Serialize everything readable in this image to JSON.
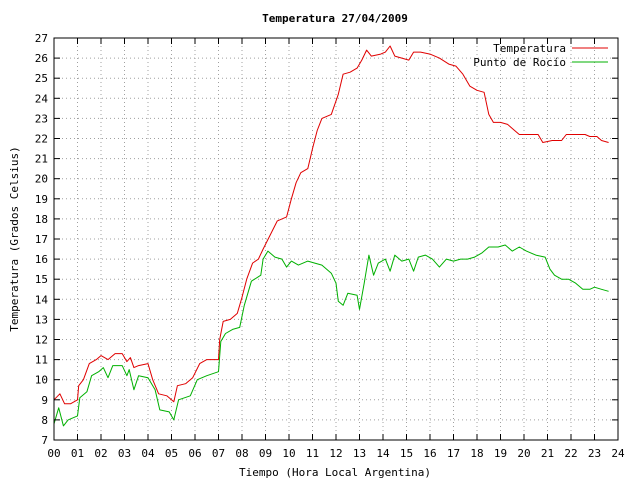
{
  "chart_data": {
    "type": "line",
    "title": "Temperatura 27/04/2009",
    "xlabel": "Tiempo (Hora Local Argentina)",
    "ylabel": "Temperatura (Grados Celsius)",
    "xlim": [
      0,
      24
    ],
    "ylim": [
      7,
      27
    ],
    "x_ticks": [
      "00",
      "01",
      "02",
      "03",
      "04",
      "05",
      "06",
      "07",
      "08",
      "09",
      "10",
      "11",
      "12",
      "13",
      "14",
      "15",
      "16",
      "17",
      "18",
      "19",
      "20",
      "21",
      "22",
      "23",
      "24"
    ],
    "y_ticks": [
      7,
      8,
      9,
      10,
      11,
      12,
      13,
      14,
      15,
      16,
      17,
      18,
      19,
      20,
      21,
      22,
      23,
      24,
      25,
      26,
      27
    ],
    "grid": true,
    "legend_position": "top-right",
    "series": [
      {
        "name": "Temperatura",
        "color": "#e00000",
        "points": [
          [
            0.0,
            9.0
          ],
          [
            0.25,
            9.3
          ],
          [
            0.45,
            8.8
          ],
          [
            0.7,
            8.8
          ],
          [
            1.0,
            9.0
          ],
          [
            1.05,
            9.7
          ],
          [
            1.25,
            10.0
          ],
          [
            1.5,
            10.8
          ],
          [
            1.8,
            11.0
          ],
          [
            2.0,
            11.2
          ],
          [
            2.3,
            11.0
          ],
          [
            2.6,
            11.3
          ],
          [
            2.9,
            11.3
          ],
          [
            3.1,
            10.9
          ],
          [
            3.25,
            11.1
          ],
          [
            3.4,
            10.6
          ],
          [
            3.6,
            10.7
          ],
          [
            4.0,
            10.8
          ],
          [
            4.2,
            10.0
          ],
          [
            4.45,
            9.3
          ],
          [
            4.8,
            9.2
          ],
          [
            5.1,
            8.9
          ],
          [
            5.25,
            9.7
          ],
          [
            5.6,
            9.8
          ],
          [
            5.9,
            10.1
          ],
          [
            6.2,
            10.8
          ],
          [
            6.5,
            11.0
          ],
          [
            7.0,
            11.0
          ],
          [
            7.05,
            12.0
          ],
          [
            7.2,
            12.9
          ],
          [
            7.5,
            13.0
          ],
          [
            7.8,
            13.3
          ],
          [
            8.0,
            14.1
          ],
          [
            8.2,
            15.0
          ],
          [
            8.45,
            15.8
          ],
          [
            8.7,
            16.0
          ],
          [
            8.9,
            16.5
          ],
          [
            9.2,
            17.2
          ],
          [
            9.5,
            17.9
          ],
          [
            9.9,
            18.1
          ],
          [
            10.1,
            19.0
          ],
          [
            10.3,
            19.8
          ],
          [
            10.5,
            20.3
          ],
          [
            10.8,
            20.5
          ],
          [
            11.0,
            21.5
          ],
          [
            11.2,
            22.4
          ],
          [
            11.4,
            23.0
          ],
          [
            11.8,
            23.2
          ],
          [
            12.1,
            24.2
          ],
          [
            12.3,
            25.2
          ],
          [
            12.6,
            25.3
          ],
          [
            12.9,
            25.5
          ],
          [
            13.1,
            25.9
          ],
          [
            13.3,
            26.4
          ],
          [
            13.5,
            26.1
          ],
          [
            13.9,
            26.2
          ],
          [
            14.1,
            26.3
          ],
          [
            14.3,
            26.6
          ],
          [
            14.5,
            26.1
          ],
          [
            14.8,
            26.0
          ],
          [
            15.1,
            25.9
          ],
          [
            15.3,
            26.3
          ],
          [
            15.6,
            26.3
          ],
          [
            16.0,
            26.2
          ],
          [
            16.4,
            26.0
          ],
          [
            16.8,
            25.7
          ],
          [
            17.1,
            25.6
          ],
          [
            17.4,
            25.2
          ],
          [
            17.7,
            24.6
          ],
          [
            18.0,
            24.4
          ],
          [
            18.3,
            24.3
          ],
          [
            18.5,
            23.2
          ],
          [
            18.7,
            22.8
          ],
          [
            19.0,
            22.8
          ],
          [
            19.3,
            22.7
          ],
          [
            19.6,
            22.4
          ],
          [
            19.8,
            22.2
          ],
          [
            20.2,
            22.2
          ],
          [
            20.6,
            22.2
          ],
          [
            20.8,
            21.8
          ],
          [
            21.2,
            21.9
          ],
          [
            21.6,
            21.9
          ],
          [
            21.8,
            22.2
          ],
          [
            22.2,
            22.2
          ],
          [
            22.6,
            22.2
          ],
          [
            22.8,
            22.1
          ],
          [
            23.1,
            22.1
          ],
          [
            23.3,
            21.9
          ],
          [
            23.6,
            21.8
          ]
        ]
      },
      {
        "name": "Punto de Rocío",
        "color": "#00b000",
        "points": [
          [
            0.0,
            7.8
          ],
          [
            0.2,
            8.6
          ],
          [
            0.4,
            7.7
          ],
          [
            0.6,
            8.0
          ],
          [
            1.0,
            8.2
          ],
          [
            1.1,
            9.1
          ],
          [
            1.4,
            9.4
          ],
          [
            1.6,
            10.2
          ],
          [
            1.9,
            10.4
          ],
          [
            2.1,
            10.6
          ],
          [
            2.3,
            10.1
          ],
          [
            2.5,
            10.7
          ],
          [
            2.9,
            10.7
          ],
          [
            3.1,
            10.2
          ],
          [
            3.2,
            10.5
          ],
          [
            3.4,
            9.5
          ],
          [
            3.6,
            10.2
          ],
          [
            4.0,
            10.1
          ],
          [
            4.3,
            9.5
          ],
          [
            4.5,
            8.5
          ],
          [
            4.9,
            8.4
          ],
          [
            5.1,
            8.0
          ],
          [
            5.3,
            9.0
          ],
          [
            5.8,
            9.2
          ],
          [
            6.1,
            10.0
          ],
          [
            6.5,
            10.2
          ],
          [
            7.0,
            10.4
          ],
          [
            7.1,
            11.9
          ],
          [
            7.3,
            12.3
          ],
          [
            7.6,
            12.5
          ],
          [
            7.9,
            12.6
          ],
          [
            8.1,
            13.7
          ],
          [
            8.4,
            14.9
          ],
          [
            8.8,
            15.2
          ],
          [
            8.9,
            16.0
          ],
          [
            9.1,
            16.4
          ],
          [
            9.4,
            16.1
          ],
          [
            9.7,
            16.0
          ],
          [
            9.9,
            15.6
          ],
          [
            10.1,
            15.9
          ],
          [
            10.4,
            15.7
          ],
          [
            10.8,
            15.9
          ],
          [
            11.1,
            15.8
          ],
          [
            11.4,
            15.7
          ],
          [
            11.8,
            15.3
          ],
          [
            12.0,
            14.8
          ],
          [
            12.1,
            13.9
          ],
          [
            12.3,
            13.7
          ],
          [
            12.5,
            14.3
          ],
          [
            12.9,
            14.2
          ],
          [
            13.0,
            13.5
          ],
          [
            13.2,
            14.8
          ],
          [
            13.4,
            16.2
          ],
          [
            13.6,
            15.2
          ],
          [
            13.8,
            15.8
          ],
          [
            14.1,
            16.0
          ],
          [
            14.3,
            15.4
          ],
          [
            14.5,
            16.2
          ],
          [
            14.8,
            15.9
          ],
          [
            15.1,
            16.0
          ],
          [
            15.3,
            15.4
          ],
          [
            15.5,
            16.1
          ],
          [
            15.8,
            16.2
          ],
          [
            16.1,
            16.0
          ],
          [
            16.4,
            15.6
          ],
          [
            16.7,
            16.0
          ],
          [
            17.0,
            15.9
          ],
          [
            17.3,
            16.0
          ],
          [
            17.6,
            16.0
          ],
          [
            17.9,
            16.1
          ],
          [
            18.2,
            16.3
          ],
          [
            18.5,
            16.6
          ],
          [
            18.9,
            16.6
          ],
          [
            19.2,
            16.7
          ],
          [
            19.5,
            16.4
          ],
          [
            19.8,
            16.6
          ],
          [
            20.1,
            16.4
          ],
          [
            20.5,
            16.2
          ],
          [
            20.9,
            16.1
          ],
          [
            21.1,
            15.5
          ],
          [
            21.3,
            15.2
          ],
          [
            21.6,
            15.0
          ],
          [
            21.9,
            15.0
          ],
          [
            22.2,
            14.8
          ],
          [
            22.5,
            14.5
          ],
          [
            22.8,
            14.5
          ],
          [
            23.0,
            14.6
          ],
          [
            23.3,
            14.5
          ],
          [
            23.6,
            14.4
          ]
        ]
      }
    ]
  }
}
